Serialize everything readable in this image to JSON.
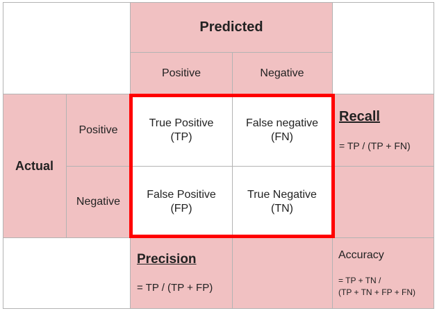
{
  "header": {
    "predicted": "Predicted",
    "positive": "Positive",
    "negative": "Negative"
  },
  "side": {
    "actual": "Actual",
    "positive": "Positive",
    "negative": "Negative"
  },
  "matrix": {
    "tp": {
      "line1": "True Positive",
      "line2": "(TP)"
    },
    "fn": {
      "line1": "False negative",
      "line2": "(FN)"
    },
    "fp": {
      "line1": "False Positive",
      "line2": "(FP)"
    },
    "tn": {
      "line1": "True Negative",
      "line2": "(TN)"
    }
  },
  "recall": {
    "title": "Recall",
    "formula": "= TP / (TP + FN)"
  },
  "precision": {
    "title": "Precision",
    "formula": "= TP / (TP + FP)"
  },
  "accuracy": {
    "title": "Accuracy",
    "formula_line1": "= TP + TN /",
    "formula_line2": "(TP + TN + FP + FN)"
  },
  "colors": {
    "cell_fill": "#f1c1c2",
    "highlight": "#ff0000",
    "grid": "#b3b3b3"
  }
}
